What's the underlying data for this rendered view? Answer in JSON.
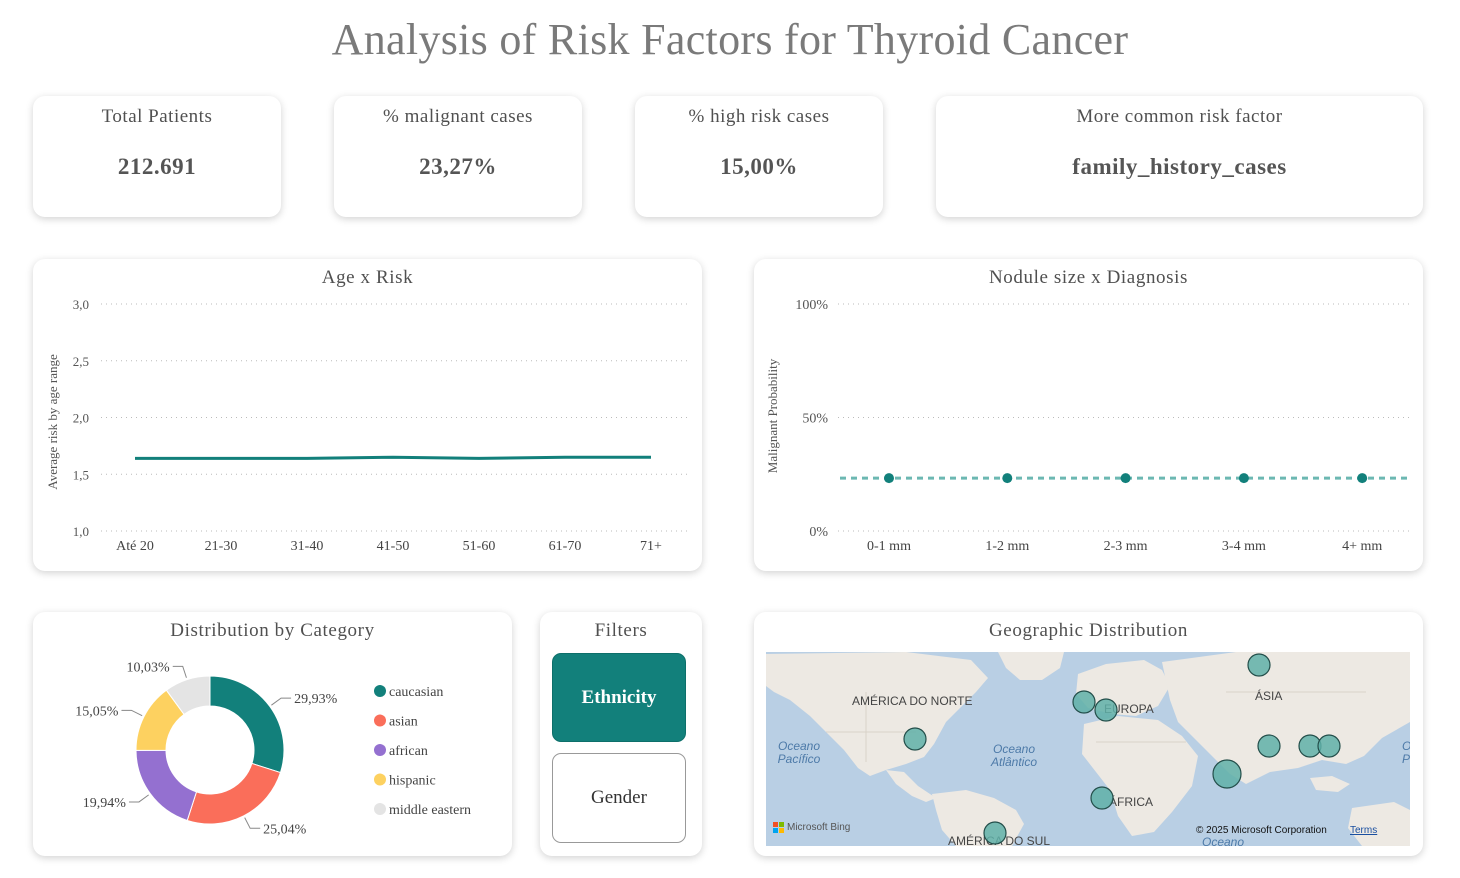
{
  "title": "Analysis of Risk Factors for Thyroid Cancer",
  "kpis": [
    {
      "label": "Total Patients",
      "value": "212.691"
    },
    {
      "label": "% malignant cases",
      "value": "23,27%"
    },
    {
      "label": "% high risk cases",
      "value": "15,00%"
    },
    {
      "label": "More common risk factor",
      "value": "family_history_cases"
    }
  ],
  "colors": {
    "teal": "#12807b",
    "teal_light": "#6cb8b2",
    "salmon": "#fa6e5a",
    "purple": "#9470d0",
    "yellow": "#fdd160",
    "grey": "#e4e4e4"
  },
  "chart_data": [
    {
      "type": "line",
      "title": "Age x Risk",
      "xlabel": "",
      "ylabel": "Average risk by age range",
      "categories": [
        "Até 20",
        "21-30",
        "31-40",
        "41-50",
        "51-60",
        "61-70",
        "71+"
      ],
      "values": [
        1.64,
        1.64,
        1.64,
        1.65,
        1.64,
        1.65,
        1.65
      ],
      "ylim": [
        1.0,
        3.0
      ],
      "yticks": [
        "1,0",
        "1,5",
        "2,0",
        "2,5",
        "3,0"
      ],
      "ytick_values": [
        1.0,
        1.5,
        2.0,
        2.5,
        3.0
      ],
      "grid": true
    },
    {
      "type": "line",
      "title": "Nodule size x Diagnosis",
      "xlabel": "",
      "ylabel": "Malignant Probability",
      "categories": [
        "0-1 mm",
        "1-2 mm",
        "2-3 mm",
        "3-4 mm",
        "4+ mm"
      ],
      "values": [
        23.3,
        23.3,
        23.3,
        23.3,
        23.3
      ],
      "ylim": [
        0,
        100
      ],
      "yticks": [
        "0%",
        "50%",
        "100%"
      ],
      "ytick_values": [
        0,
        50,
        100
      ],
      "grid": true
    },
    {
      "type": "pie",
      "title": "Distribution by Category",
      "categories": [
        "caucasian",
        "asian",
        "african",
        "hispanic",
        "middle eastern"
      ],
      "values": [
        29.93,
        25.04,
        19.94,
        15.05,
        10.03
      ],
      "labels": [
        "29,93%",
        "25,04%",
        "19,94%",
        "15,05%",
        "10,03%"
      ],
      "legend": "right"
    }
  ],
  "filters": {
    "title": "Filters",
    "buttons": [
      {
        "label": "Ethnicity",
        "active": true
      },
      {
        "label": "Gender",
        "active": false
      }
    ]
  },
  "map": {
    "title": "Geographic Distribution",
    "labels": {
      "north_america": "AMÉRICA DO NORTE",
      "europe": "EUROPA",
      "asia": "ÁSIA",
      "africa": "ÁFRICA",
      "south_america": "AMÉRICA DO SUL",
      "pacific": "Oceano Pacífico",
      "atlantic": "Oceano Atlântico",
      "ocean_bottom": "Oceano",
      "edge_letters": "O P"
    },
    "bing": "Microsoft Bing",
    "copyright": "© 2025 Microsoft Corporation",
    "terms": "Terms"
  }
}
